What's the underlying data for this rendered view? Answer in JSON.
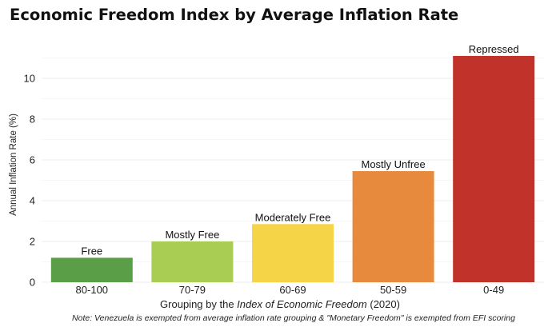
{
  "chart_data": {
    "type": "bar",
    "title": "Economic Freedom Index by Average Inflation Rate",
    "categories": [
      "80-100",
      "70-79",
      "60-69",
      "50-59",
      "0-49"
    ],
    "labels": [
      "Free",
      "Mostly Free",
      "Moderately Free",
      "Mostly Unfree",
      "Repressed"
    ],
    "values": [
      1.2,
      2.0,
      2.85,
      5.45,
      11.1
    ],
    "colors": [
      "#5a9e47",
      "#a9cc52",
      "#f5d547",
      "#e88a3e",
      "#c0322a"
    ],
    "ylabel": "Annual Inflation Rate (%)",
    "xlabel_prefix": "Grouping by the ",
    "xlabel_italic": "Index of Economic Freedom",
    "xlabel_suffix": " (2020)",
    "yticks": [
      "0",
      "2",
      "4",
      "6",
      "8",
      "10"
    ],
    "ylim": [
      0,
      12
    ],
    "note": "Note: Venezuela is exempted from average inflation rate grouping & \"Monetary Freedom\" is exempted from EFI scoring"
  }
}
